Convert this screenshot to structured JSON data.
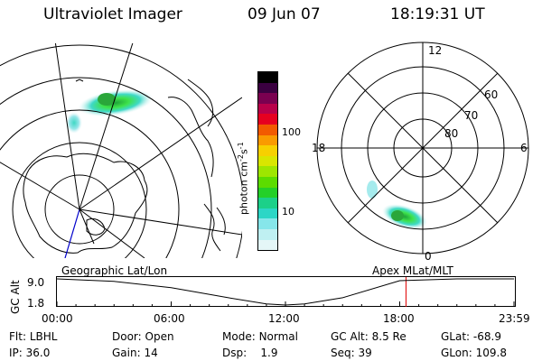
{
  "header": {
    "instrument": "Ultraviolet Imager",
    "date": "09 Jun 07",
    "time": "18:19:31 UT"
  },
  "colorbar": {
    "unit_prefix": "photon cm",
    "unit_exp1": "-2",
    "unit_mid": "s",
    "unit_exp2": "-1",
    "ticks": [
      "100",
      "10"
    ],
    "colors": [
      "#000000",
      "#3a0040",
      "#7a0050",
      "#b8004a",
      "#e60020",
      "#f25a00",
      "#fa9a00",
      "#f7d000",
      "#d9e600",
      "#9ee600",
      "#5cdc00",
      "#24d028",
      "#1cd089",
      "#2cd6c6",
      "#86e6ea",
      "#bff0f2",
      "#e4f6f7"
    ]
  },
  "maps": {
    "left_label": "Geographic Lat/Lon",
    "right_label": "Apex MLat/MLT",
    "polar_labels": {
      "top": "12",
      "left": "18",
      "right": "6",
      "bottom": "0",
      "lat60": "60",
      "lat70": "70",
      "lat80": "80"
    }
  },
  "altitude_plot": {
    "ylabel": "GC Alt",
    "yticks": [
      "9.0",
      "1.8"
    ],
    "xticks": [
      "00:00",
      "06:00",
      "12:00",
      "18:00",
      "23:59"
    ]
  },
  "chart_data": {
    "type": "line",
    "title": "",
    "xlabel": "",
    "ylabel": "GC Alt",
    "x": [
      0,
      3,
      6,
      9,
      11,
      12,
      13,
      15,
      18,
      21,
      24
    ],
    "values": [
      9.0,
      8.3,
      6.6,
      3.8,
      2.1,
      1.8,
      2.1,
      3.8,
      8.5,
      9.0,
      9.0
    ],
    "xlim": [
      0,
      24
    ],
    "ylim": [
      1.8,
      9.0
    ],
    "current_time_marker": 18.33
  },
  "info": {
    "row1": [
      {
        "label": "Flt:",
        "value": "LBHL"
      },
      {
        "label": "Door:",
        "value": "Open"
      },
      {
        "label": "Mode:",
        "value": "Normal"
      },
      {
        "label": "GC Alt:",
        "value": "8.5 Re"
      },
      {
        "label": "GLat:",
        "value": "-68.9"
      }
    ],
    "row2": [
      {
        "label": "IP:",
        "value": "36.0"
      },
      {
        "label": "Gain:",
        "value": "14"
      },
      {
        "label": "Dsp:",
        "value": "1.9"
      },
      {
        "label": "Seq:",
        "value": "39"
      },
      {
        "label": "GLon:",
        "value": "109.8"
      }
    ]
  }
}
